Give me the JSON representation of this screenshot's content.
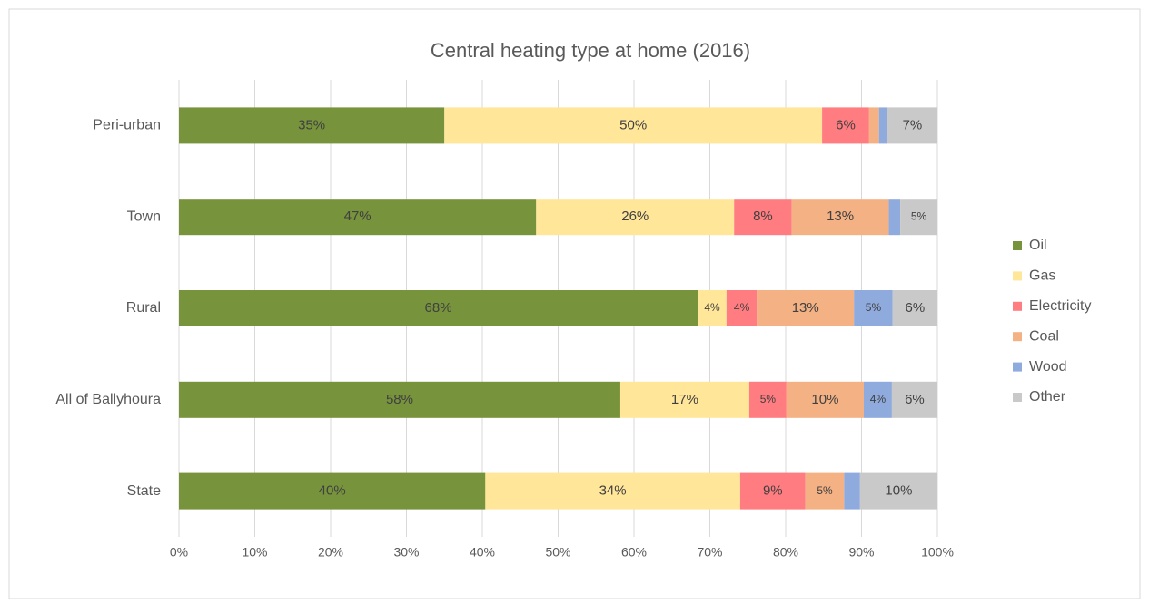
{
  "chart_data": {
    "type": "stacked-bar-horizontal",
    "title": "Central heating type at home (2016)",
    "categories": [
      "Peri-urban",
      "Town",
      "Rural",
      "All of Ballyhoura",
      "State"
    ],
    "series": [
      {
        "name": "Oil",
        "color": "#77933c",
        "values": [
          35,
          47.1,
          68.4,
          58.2,
          40.4
        ],
        "value_labels": [
          "35%",
          "47%",
          "68%",
          "58%",
          "40%"
        ]
      },
      {
        "name": "Gas",
        "color": "#ffe699",
        "values": [
          49.8,
          26.1,
          3.8,
          17.0,
          33.6
        ],
        "value_labels": [
          "50%",
          "26%",
          "4%",
          "17%",
          "34%"
        ]
      },
      {
        "name": "Electricity",
        "color": "#ff7c80",
        "values": [
          6.2,
          7.6,
          4.0,
          4.9,
          8.6
        ],
        "value_labels": [
          "6%",
          "8%",
          "4%",
          "5%",
          "9%"
        ]
      },
      {
        "name": "Coal",
        "color": "#f4b183",
        "values": [
          1.3,
          12.8,
          12.8,
          10.2,
          5.1
        ],
        "value_labels": [
          null,
          "13%",
          "13%",
          "10%",
          "5%"
        ]
      },
      {
        "name": "Wood",
        "color": "#8faadc",
        "values": [
          1.1,
          1.5,
          5.1,
          3.7,
          2.1
        ],
        "value_labels": [
          null,
          null,
          "5%",
          "4%",
          null
        ]
      },
      {
        "name": "Other",
        "color": "#c9c9c9",
        "values": [
          6.6,
          4.9,
          5.9,
          6.0,
          10.2
        ],
        "value_labels": [
          "7%",
          "5%",
          "6%",
          "6%",
          "10%"
        ]
      }
    ],
    "xlim": [
      0,
      100
    ],
    "xticks": [
      {
        "value": 0,
        "label": "0%"
      },
      {
        "value": 10,
        "label": "10%"
      },
      {
        "value": 20,
        "label": "20%"
      },
      {
        "value": 30,
        "label": "30%"
      },
      {
        "value": 40,
        "label": "40%"
      },
      {
        "value": 50,
        "label": "50%"
      },
      {
        "value": 60,
        "label": "60%"
      },
      {
        "value": 70,
        "label": "70%"
      },
      {
        "value": 80,
        "label": "80%"
      },
      {
        "value": 90,
        "label": "90%"
      },
      {
        "value": 100,
        "label": "100%"
      }
    ],
    "grid": true,
    "legend": "right"
  }
}
